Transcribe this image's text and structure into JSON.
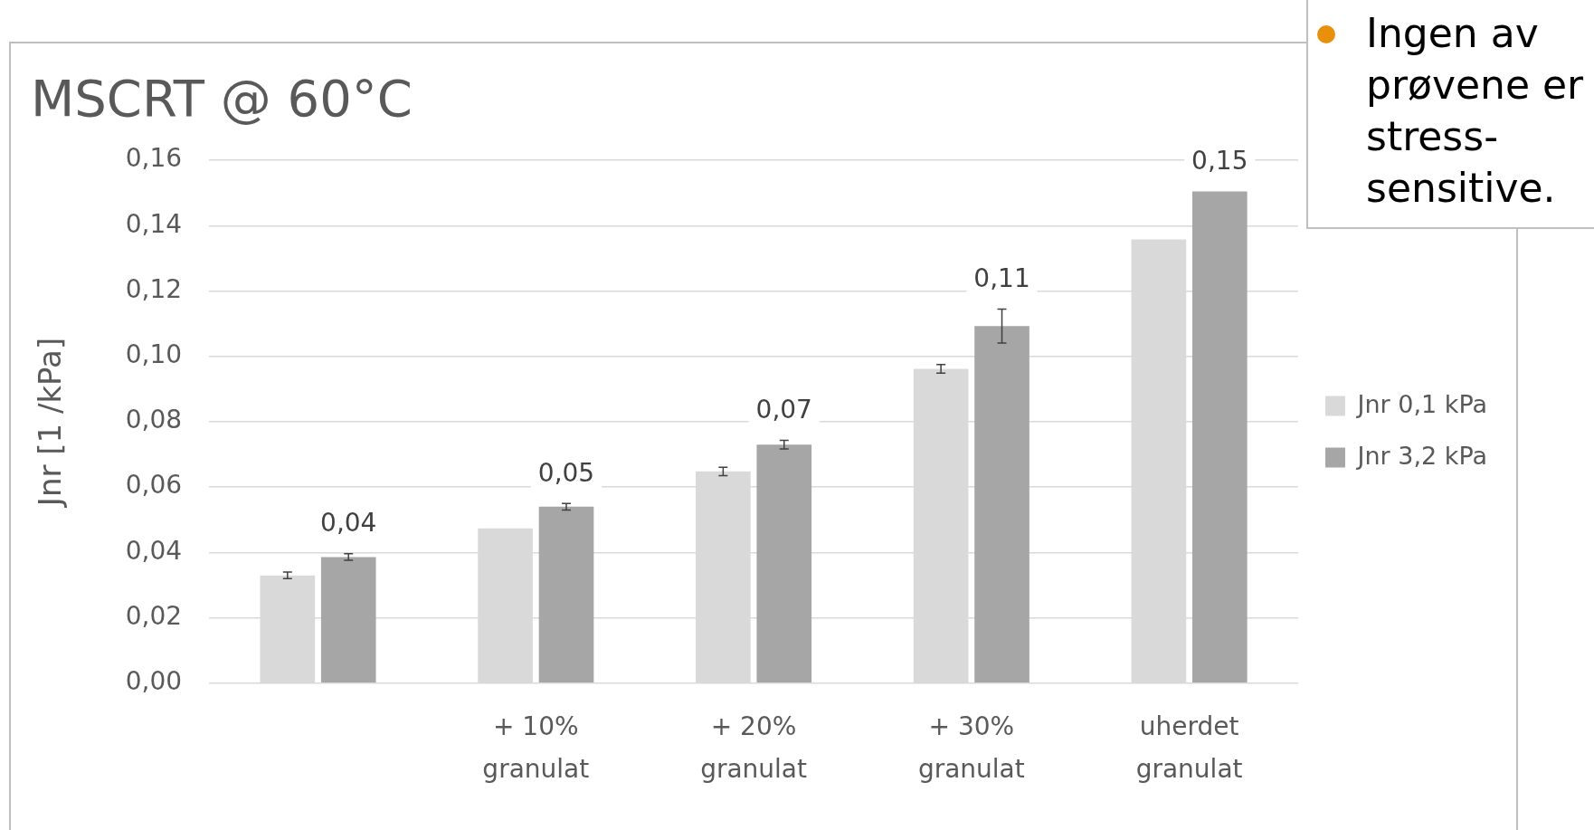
{
  "chart_data": {
    "type": "bar",
    "title": "MSCRT @ 60°C",
    "ylabel": "Jnr [1 /kPa]",
    "categories": [
      null,
      "+ 10% granulat",
      "+ 20% granulat",
      "+ 30% granulat",
      "uherdet granulat"
    ],
    "series": [
      {
        "name": "Jnr 0,1 kPa",
        "color": "#d9d9d9",
        "values": [
          0.033,
          0.0474,
          0.0648,
          0.0962,
          0.1358
        ],
        "errors": [
          0.001,
          null,
          0.0013,
          0.0013,
          null
        ]
      },
      {
        "name": "Jnr 3,2 kPa",
        "color": "#a6a6a6",
        "values": [
          0.0386,
          0.054,
          0.073,
          0.1093,
          0.1505
        ],
        "errors": [
          0.001,
          0.001,
          0.0013,
          0.0052,
          null
        ],
        "value_labels": [
          "0,04",
          "0,05",
          "0,07",
          "0,11",
          "0,15"
        ]
      }
    ],
    "ylim": [
      0,
      0.16
    ],
    "yticks": [
      {
        "value": 0,
        "label": "0,00"
      },
      {
        "value": 0.02,
        "label": "0,02"
      },
      {
        "value": 0.04,
        "label": "0,04"
      },
      {
        "value": 0.06,
        "label": "0,06"
      },
      {
        "value": 0.08,
        "label": "0,08"
      },
      {
        "value": 0.1,
        "label": "0,10"
      },
      {
        "value": 0.12,
        "label": "0,12"
      },
      {
        "value": 0.14,
        "label": "0,14"
      },
      {
        "value": 0.16,
        "label": "0,16"
      }
    ],
    "grid": "y",
    "legend": "right",
    "annotations": [
      "Ingen av prøvene er stress-sensitive."
    ]
  }
}
